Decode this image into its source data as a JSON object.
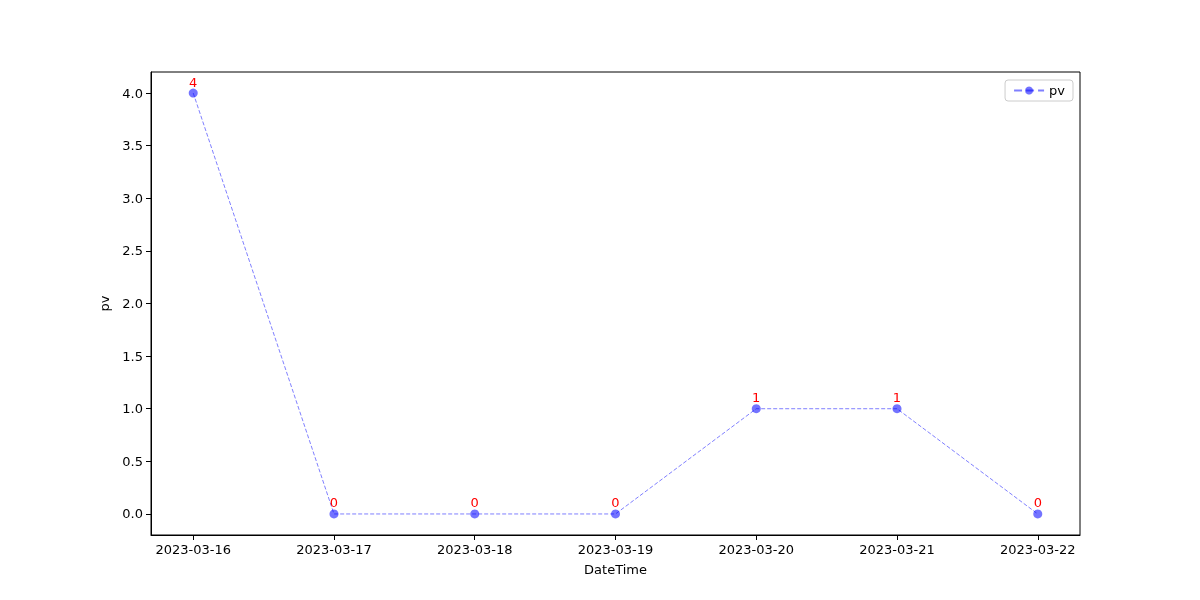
{
  "chart_data": {
    "type": "line",
    "xlabel": "DateTime",
    "ylabel": "pv",
    "categories": [
      "2023-03-16",
      "2023-03-17",
      "2023-03-18",
      "2023-03-19",
      "2023-03-20",
      "2023-03-21",
      "2023-03-22"
    ],
    "series": [
      {
        "name": "pv",
        "color": "#0000ff",
        "values": [
          4,
          0,
          0,
          0,
          1,
          1,
          0
        ]
      }
    ],
    "ylim": [
      -0.2,
      4.2
    ],
    "yticks": [
      {
        "value": 0,
        "label": "0.0"
      },
      {
        "value": 0.5,
        "label": "0.5"
      },
      {
        "value": 1,
        "label": "1.0"
      },
      {
        "value": 1.5,
        "label": "1.5"
      },
      {
        "value": 2,
        "label": "2.0"
      },
      {
        "value": 2.5,
        "label": "2.5"
      },
      {
        "value": 3,
        "label": "3.0"
      },
      {
        "value": 3.5,
        "label": "3.5"
      },
      {
        "value": 4,
        "label": "4.0"
      }
    ],
    "grid": false,
    "legend": "top right",
    "marker": "circle",
    "line_style": "dashed",
    "data_labels": true
  }
}
